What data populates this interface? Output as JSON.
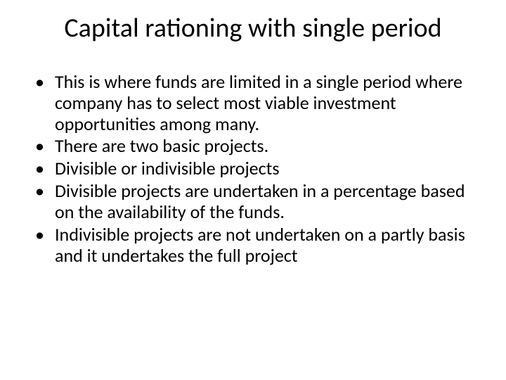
{
  "slide": {
    "title": "Capital rationing with single period",
    "title_fontsize": 38,
    "body_fontsize": 26,
    "background_color": "#ffffff",
    "text_color": "#000000",
    "bullets": [
      "This is where funds are limited in a single period where company has to select most viable investment opportunities among many.",
      "There are two basic projects.",
      "Divisible or indivisible projects",
      "Divisible projects are undertaken in a percentage based on the availability of the funds.",
      "Indivisible projects are not undertaken on a partly basis and it undertakes the full project"
    ]
  }
}
